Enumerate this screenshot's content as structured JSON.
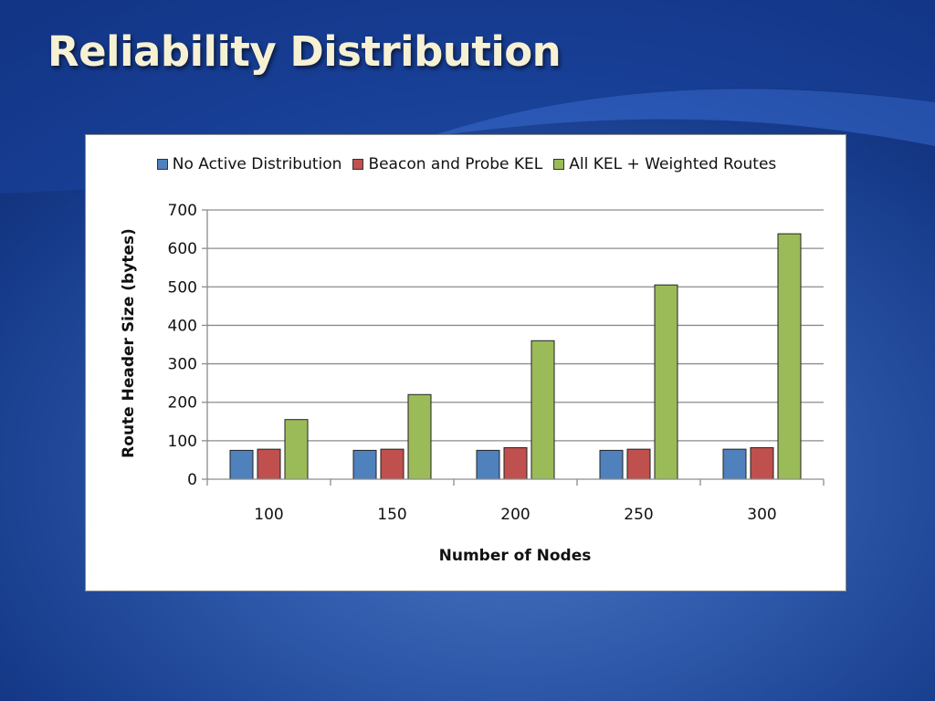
{
  "slide": {
    "title": "Reliability Distribution"
  },
  "chart_data": {
    "type": "bar",
    "title": "",
    "xlabel": "Number of Nodes",
    "ylabel": "Route Header Size  (bytes)",
    "categories": [
      "100",
      "150",
      "200",
      "250",
      "300"
    ],
    "ylim": [
      0,
      700
    ],
    "yticks": [
      0,
      100,
      200,
      300,
      400,
      500,
      600,
      700
    ],
    "grid": true,
    "legend_position": "top",
    "series": [
      {
        "name": "No Active Distribution",
        "color": "#4f81bd",
        "values": [
          75,
          75,
          75,
          75,
          78
        ]
      },
      {
        "name": "Beacon and Probe KEL",
        "color": "#c0504d",
        "values": [
          78,
          78,
          82,
          78,
          82
        ]
      },
      {
        "name": "All KEL + Weighted Routes",
        "color": "#9bbb59",
        "values": [
          155,
          220,
          360,
          505,
          638
        ]
      }
    ]
  }
}
